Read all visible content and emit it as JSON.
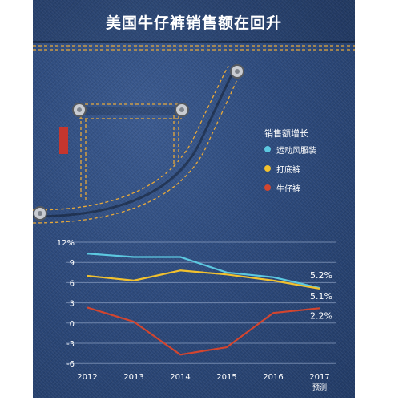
{
  "page": {
    "title": "美国牛仔裤销售额在回升",
    "legend_title": "销售额增长"
  },
  "colors": {
    "denim": "#2d4a7c",
    "stitch": "#e8a93a",
    "grid": "#8ea2c4",
    "sportswear": "#5cc8e0",
    "leggings": "#f2c12e",
    "jeans": "#d2452f"
  },
  "chart_data": {
    "type": "line",
    "categories": [
      "2012",
      "2013",
      "2014",
      "2015",
      "2016",
      "2017"
    ],
    "x_sublabels": [
      "",
      "",
      "",
      "",
      "",
      "预测"
    ],
    "yticks": [
      "12%",
      "9",
      "6",
      "3",
      "0",
      "-3",
      "-6"
    ],
    "ylim": [
      -7,
      12
    ],
    "grid": true,
    "legend_position": "top-right",
    "series": [
      {
        "name": "运动风服装",
        "color": "#5cc8e0",
        "values": [
          10.3,
          9.8,
          9.8,
          7.5,
          6.8,
          5.2
        ],
        "end_label": "5.2%"
      },
      {
        "name": "打底裤",
        "color": "#f2c12e",
        "values": [
          7.0,
          6.3,
          7.8,
          7.2,
          6.3,
          5.1
        ],
        "end_label": "5.1%"
      },
      {
        "name": "牛仔裤",
        "color": "#d2452f",
        "values": [
          2.3,
          0.2,
          -4.7,
          -3.6,
          1.5,
          2.2
        ],
        "end_label": "2.2%"
      }
    ]
  }
}
